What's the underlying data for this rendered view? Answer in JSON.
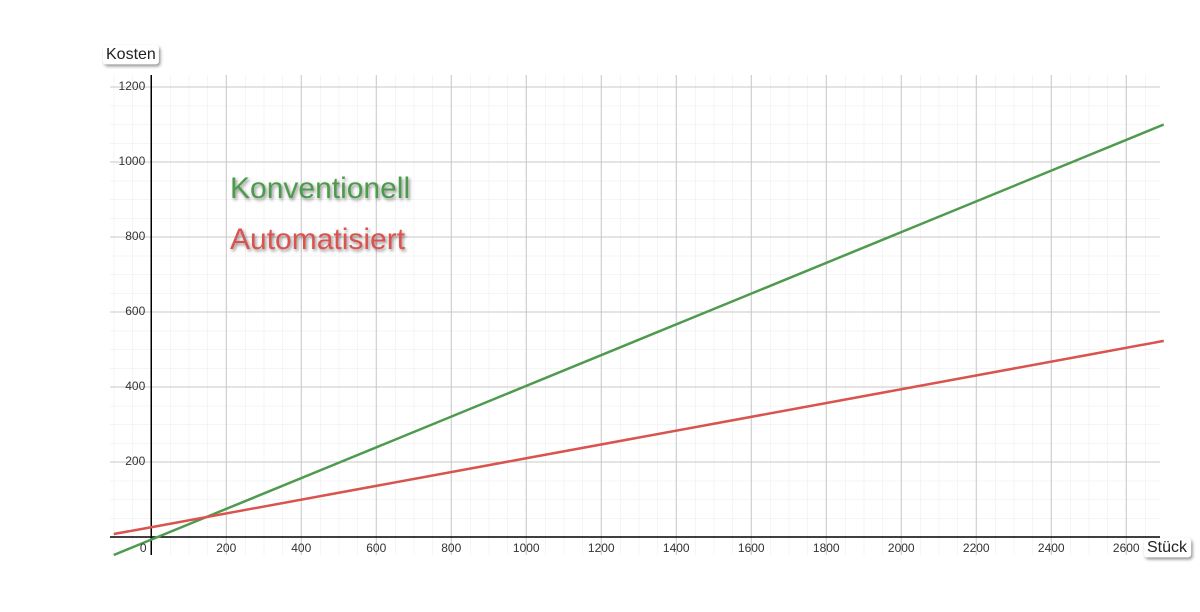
{
  "chart_data": {
    "type": "line",
    "x_label": "Stück",
    "y_label": "Kosten",
    "x": [
      -100,
      0,
      500,
      1000,
      1500,
      2000,
      2500,
      2700
    ],
    "series": [
      {
        "name": "Konventionell",
        "color": "#4e9a4e",
        "values": [
          -48,
          -7,
          198,
          403,
          608,
          813,
          1018,
          1100
        ]
      },
      {
        "name": "Automatisiert",
        "color": "#d9534f",
        "values": [
          8,
          26,
          118,
          210,
          302,
          394,
          486,
          523
        ]
      }
    ],
    "xlim": [
      -110,
      2690
    ],
    "ylim": [
      -48,
      1232
    ],
    "xticks": [
      0,
      200,
      400,
      600,
      800,
      1000,
      1200,
      1400,
      1600,
      1800,
      2000,
      2200,
      2400,
      2600
    ],
    "yticks": [
      200,
      400,
      600,
      800,
      1000,
      1200
    ],
    "grid": true,
    "minor_grid": true
  }
}
